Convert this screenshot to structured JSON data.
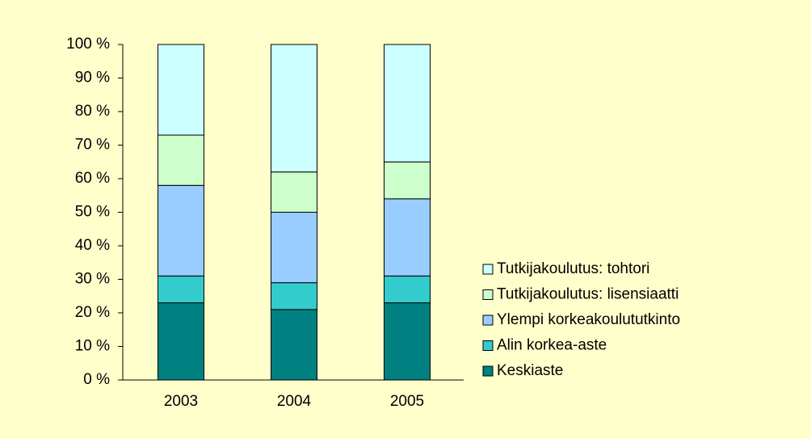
{
  "chart_data": {
    "type": "stacked_bar_100",
    "categories": [
      "2003",
      "2004",
      "2005"
    ],
    "series": [
      {
        "name": "Keskiaste",
        "color": "#008080",
        "values": [
          23,
          21,
          23
        ]
      },
      {
        "name": "Alin korkea-aste",
        "color": "#33cccc",
        "values": [
          8,
          8,
          8
        ]
      },
      {
        "name": "Ylempi korkeakoulututkinto",
        "color": "#99ccff",
        "values": [
          27,
          21,
          23
        ]
      },
      {
        "name": "Tutkijakoulutus: lisensiaatti",
        "color": "#ccffcc",
        "values": [
          15,
          12,
          11
        ]
      },
      {
        "name": "Tutkijakoulutus: tohtori",
        "color": "#ccffff",
        "values": [
          27,
          38,
          35
        ]
      }
    ],
    "ylim": [
      0,
      100
    ],
    "yticks": [
      {
        "value": 0,
        "label": "0 %"
      },
      {
        "value": 10,
        "label": "10 %"
      },
      {
        "value": 20,
        "label": "20 %"
      },
      {
        "value": 30,
        "label": "30 %"
      },
      {
        "value": 40,
        "label": "40 %"
      },
      {
        "value": 50,
        "label": "50 %"
      },
      {
        "value": 60,
        "label": "60 %"
      },
      {
        "value": 70,
        "label": "70 %"
      },
      {
        "value": 80,
        "label": "80 %"
      },
      {
        "value": 90,
        "label": "90 %"
      },
      {
        "value": 100,
        "label": "100 %"
      }
    ],
    "legend": "right"
  }
}
